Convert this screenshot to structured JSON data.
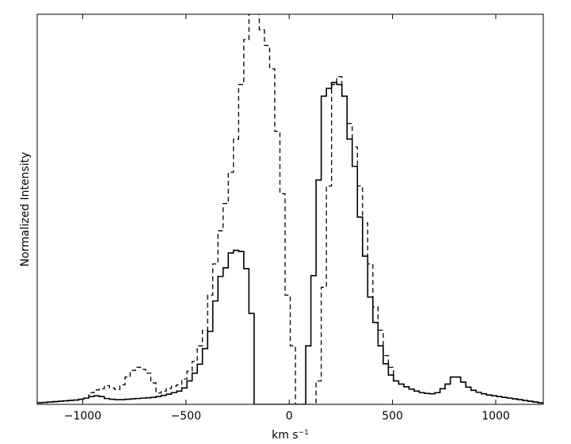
{
  "chart_data": {
    "type": "line",
    "title": "",
    "xlabel": "km s",
    "xlabel_superscript": "−1",
    "ylabel": "Normalized Intensity",
    "xlim": [
      -1220,
      1230
    ],
    "ylim": [
      0,
      1.0
    ],
    "grid": false,
    "legend": "none",
    "xticks": [
      -1000,
      -500,
      0,
      500,
      1000
    ],
    "xtick_labels": [
      "−1000",
      "−500",
      "0",
      "500",
      "1000"
    ],
    "step_width": 25,
    "series": [
      {
        "style": "solid",
        "color": "#000000",
        "x": [
          -1220,
          -1195,
          -1170,
          -1145,
          -1120,
          -1095,
          -1070,
          -1045,
          -1020,
          -995,
          -970,
          -945,
          -920,
          -895,
          -870,
          -845,
          -820,
          -795,
          -770,
          -745,
          -720,
          -695,
          -670,
          -645,
          -620,
          -595,
          -570,
          -545,
          -520,
          -495,
          -470,
          -445,
          -420,
          -395,
          -370,
          -345,
          -320,
          -295,
          -270,
          -245,
          -220,
          -195,
          -170,
          -145,
          -120,
          -95,
          -70,
          -45,
          -20,
          5,
          30,
          55,
          80,
          105,
          130,
          155,
          180,
          205,
          230,
          255,
          280,
          305,
          330,
          355,
          380,
          405,
          430,
          455,
          480,
          505,
          530,
          555,
          580,
          605,
          630,
          655,
          680,
          705,
          730,
          755,
          780,
          805,
          830,
          855,
          880,
          905,
          930,
          955,
          980,
          1005,
          1030,
          1055,
          1080,
          1105,
          1130,
          1155,
          1180,
          1205
        ],
        "y": [
          0.004,
          0.005,
          0.006,
          0.007,
          0.008,
          0.009,
          0.01,
          0.011,
          0.013,
          0.016,
          0.02,
          0.022,
          0.02,
          0.015,
          0.013,
          0.012,
          0.012,
          0.013,
          0.014,
          0.015,
          0.016,
          0.017,
          0.018,
          0.02,
          0.023,
          0.026,
          0.03,
          0.034,
          0.042,
          0.06,
          0.08,
          0.103,
          0.143,
          0.187,
          0.265,
          0.328,
          0.35,
          0.388,
          0.395,
          0.392,
          0.348,
          0.233,
          0.0,
          0.0,
          0.0,
          0.0,
          0.0,
          0.0,
          0.0,
          0.0,
          0.0,
          0.0,
          0.15,
          0.33,
          0.575,
          0.79,
          0.81,
          0.825,
          0.82,
          0.79,
          0.68,
          0.61,
          0.48,
          0.38,
          0.275,
          0.21,
          0.15,
          0.104,
          0.075,
          0.06,
          0.052,
          0.045,
          0.039,
          0.034,
          0.03,
          0.028,
          0.027,
          0.03,
          0.04,
          0.052,
          0.07,
          0.07,
          0.057,
          0.044,
          0.036,
          0.031,
          0.027,
          0.024,
          0.022,
          0.02,
          0.018,
          0.016,
          0.014,
          0.012,
          0.01,
          0.008,
          0.006,
          0.004
        ]
      },
      {
        "style": "dashed",
        "color": "#000000",
        "x": [
          -1220,
          -1195,
          -1170,
          -1145,
          -1120,
          -1095,
          -1070,
          -1045,
          -1020,
          -995,
          -970,
          -945,
          -920,
          -895,
          -870,
          -845,
          -820,
          -795,
          -770,
          -745,
          -720,
          -695,
          -670,
          -645,
          -620,
          -595,
          -570,
          -545,
          -520,
          -495,
          -470,
          -445,
          -420,
          -395,
          -370,
          -345,
          -320,
          -295,
          -270,
          -245,
          -220,
          -195,
          -170,
          -145,
          -120,
          -95,
          -70,
          -45,
          -20,
          5,
          30,
          55,
          80,
          105,
          130,
          155,
          180,
          205,
          230,
          255,
          280,
          305,
          330,
          355,
          380,
          405,
          430,
          455,
          480,
          505,
          530,
          555,
          580,
          605,
          630,
          655,
          680,
          705,
          730,
          755,
          780,
          805,
          830,
          855,
          880,
          905,
          930,
          955,
          980,
          1005,
          1030,
          1055,
          1080,
          1105,
          1130,
          1155,
          1180,
          1205
        ],
        "y": [
          0.004,
          0.005,
          0.006,
          0.007,
          0.008,
          0.009,
          0.01,
          0.011,
          0.013,
          0.016,
          0.03,
          0.037,
          0.04,
          0.048,
          0.042,
          0.038,
          0.05,
          0.07,
          0.087,
          0.095,
          0.09,
          0.08,
          0.055,
          0.029,
          0.034,
          0.041,
          0.047,
          0.05,
          0.065,
          0.085,
          0.11,
          0.15,
          0.19,
          0.28,
          0.36,
          0.445,
          0.515,
          0.595,
          0.68,
          0.82,
          0.935,
          1.0,
          1.02,
          0.96,
          0.92,
          0.86,
          0.7,
          0.54,
          0.28,
          0.15,
          0.0,
          0.0,
          0.0,
          0.0,
          0.06,
          0.3,
          0.56,
          0.82,
          0.84,
          0.79,
          0.72,
          0.66,
          0.56,
          0.465,
          0.36,
          0.25,
          0.19,
          0.125,
          0.095,
          0.06,
          0.052,
          0.045,
          0.039,
          0.034,
          0.03,
          0.028,
          0.027,
          0.03,
          0.04,
          0.052,
          0.07,
          0.07,
          0.057,
          0.044,
          0.036,
          0.031,
          0.027,
          0.024,
          0.022,
          0.02,
          0.018,
          0.016,
          0.014,
          0.012,
          0.01,
          0.008,
          0.006,
          0.004
        ]
      }
    ]
  }
}
